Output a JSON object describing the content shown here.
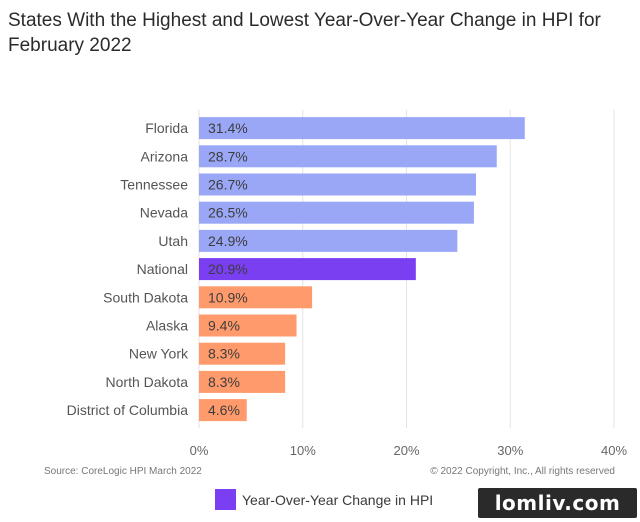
{
  "chart_data": {
    "type": "bar",
    "orientation": "horizontal",
    "title": "States With the Highest and Lowest Year-Over-Year Change in HPI for February 2022",
    "categories": [
      "Florida",
      "Arizona",
      "Tennessee",
      "Nevada",
      "Utah",
      "National",
      "South Dakota",
      "Alaska",
      "New York",
      "North Dakota",
      "District of Columbia"
    ],
    "values": [
      31.4,
      28.7,
      26.7,
      26.5,
      24.9,
      20.9,
      10.9,
      9.4,
      8.3,
      8.3,
      4.6
    ],
    "value_labels": [
      "31.4%",
      "28.7%",
      "26.7%",
      "26.5%",
      "24.9%",
      "20.9%",
      "10.9%",
      "9.4%",
      "8.3%",
      "8.3%",
      "4.6%"
    ],
    "bar_colors": [
      "#9aa7f7",
      "#9aa7f7",
      "#9aa7f7",
      "#9aa7f7",
      "#9aa7f7",
      "#7b3ff2",
      "#ff9a6c",
      "#ff9a6c",
      "#ff9a6c",
      "#ff9a6c",
      "#ff9a6c"
    ],
    "xlim": [
      0,
      40
    ],
    "xticks": [
      0,
      10,
      20,
      30,
      40
    ],
    "xtick_labels": [
      "0%",
      "10%",
      "20%",
      "30%",
      "40%"
    ],
    "grid": "vertical",
    "legend": {
      "label": "Year-Over-Year Change in HPI",
      "color": "#7b3ff2",
      "position": "bottom"
    }
  },
  "source": "Source: CoreLogic HPI March 2022",
  "copyright": "© 2022 Copyright, Inc., All rights reserved",
  "watermark": "lomliv.com"
}
